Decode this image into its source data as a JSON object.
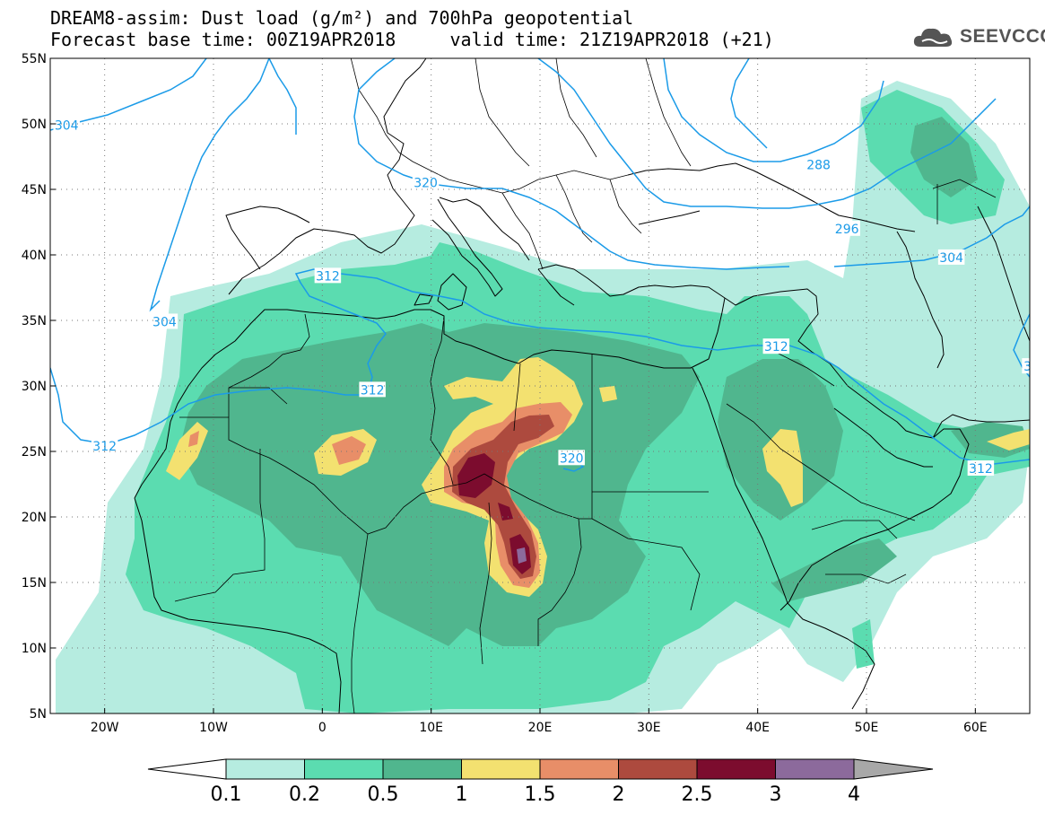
{
  "header": {
    "title_line1": "DREAM8-assim: Dust load (g/m²) and 700hPa geopotential",
    "title_line2": "Forecast base time: 00Z19APR2018     valid time: 21Z19APR2018 (+21)",
    "logo_text": "SEEVCCC"
  },
  "map": {
    "lon_ticks": [
      {
        "lon": -20,
        "label": "20W"
      },
      {
        "lon": -10,
        "label": "10W"
      },
      {
        "lon": 0,
        "label": "0"
      },
      {
        "lon": 10,
        "label": "10E"
      },
      {
        "lon": 20,
        "label": "20E"
      },
      {
        "lon": 30,
        "label": "30E"
      },
      {
        "lon": 40,
        "label": "40E"
      },
      {
        "lon": 50,
        "label": "50E"
      },
      {
        "lon": 60,
        "label": "60E"
      }
    ],
    "lat_ticks": [
      {
        "lat": 55,
        "label": "55N"
      },
      {
        "lat": 50,
        "label": "50N"
      },
      {
        "lat": 45,
        "label": "45N"
      },
      {
        "lat": 40,
        "label": "40N"
      },
      {
        "lat": 35,
        "label": "35N"
      },
      {
        "lat": 30,
        "label": "30N"
      },
      {
        "lat": 25,
        "label": "25N"
      },
      {
        "lat": 20,
        "label": "20N"
      },
      {
        "lat": 15,
        "label": "15N"
      },
      {
        "lat": 10,
        "label": "10N"
      },
      {
        "lat": 5,
        "label": "5N"
      }
    ],
    "lon_range": [
      -25,
      65
    ],
    "lat_range": [
      5,
      55
    ],
    "contour_labels": [
      {
        "text": "304",
        "lon": -23.5,
        "lat": 49.9
      },
      {
        "text": "304",
        "lon": -14.5,
        "lat": 34.9
      },
      {
        "text": "312",
        "lon": -20.0,
        "lat": 25.4
      },
      {
        "text": "312",
        "lon": 0.5,
        "lat": 38.4
      },
      {
        "text": "312",
        "lon": 4.6,
        "lat": 29.7
      },
      {
        "text": "320",
        "lon": 9.5,
        "lat": 45.5
      },
      {
        "text": "320",
        "lon": 22.9,
        "lat": 24.5
      },
      {
        "text": "288",
        "lon": 45.6,
        "lat": 46.9
      },
      {
        "text": "296",
        "lon": 48.2,
        "lat": 42.0
      },
      {
        "text": "304",
        "lon": 57.8,
        "lat": 39.8
      },
      {
        "text": "312",
        "lon": 41.7,
        "lat": 33.0
      },
      {
        "text": "312",
        "lon": 60.5,
        "lat": 23.7
      },
      {
        "text": "3",
        "lon": 64.8,
        "lat": 31.5
      }
    ]
  },
  "colorbar": {
    "labels": [
      "0.1",
      "0.2",
      "0.5",
      "1",
      "1.5",
      "2",
      "2.5",
      "3",
      "4"
    ],
    "colors": [
      "#b6ece0",
      "#5bdcb0",
      "#50b68e",
      "#f3e170",
      "#e88e68",
      "#ad4a3e",
      "#7c0c2e",
      "#8c6a9c"
    ],
    "under_color": "#ffffff",
    "over_color": "#a8a8a8"
  }
}
